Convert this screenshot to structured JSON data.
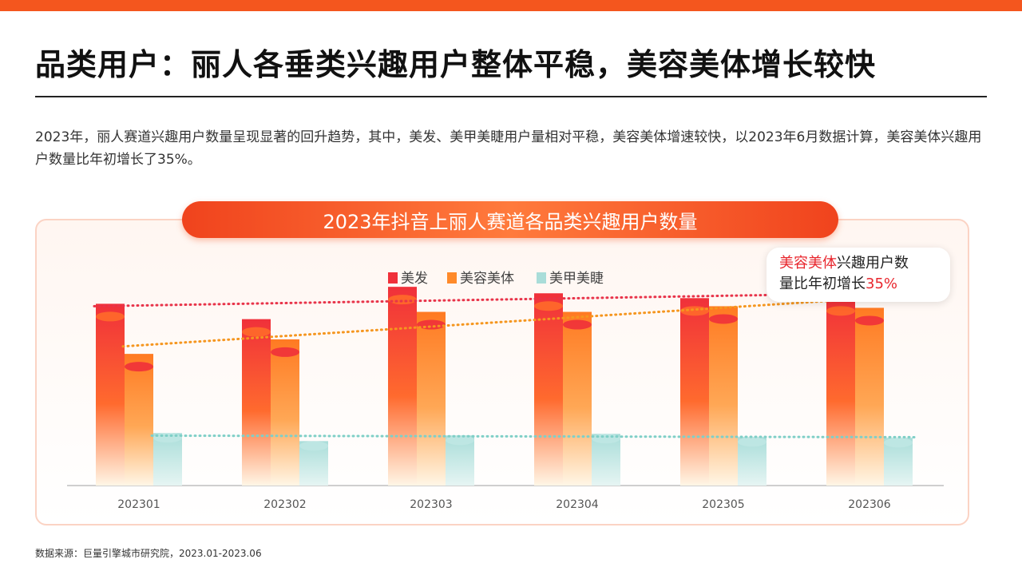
{
  "header": {
    "title": "品类用户：丽人各垂类兴趣用户整体平稳，美容美体增长较快"
  },
  "summary": "2023年，丽人赛道兴趣用户数量呈现显著的回升趋势，其中，美发、美甲美睫用户量相对平稳，美容美体增速较快，以2023年6月数据计算，美容美体兴趣用户数量比年初增长了35%。",
  "callout": {
    "highlight": "美容美体",
    "text_1": "兴趣用户数",
    "text_2": "量比年初增长",
    "percent": "35%"
  },
  "source": "数据来源：巨量引擎城市研究院，2023.01-2023.06",
  "colors": {
    "accent": "#f4561e",
    "hair": "#f0303a",
    "beauty": "#ff8a2a",
    "nail": "#a9ddd9",
    "highlight_red": "#e8262d"
  },
  "chart_data": {
    "type": "bar",
    "title": "2023年抖音上丽人赛道各品类兴趣用户数量",
    "categories": [
      "202301",
      "202302",
      "202303",
      "202304",
      "202305",
      "202306"
    ],
    "series": [
      {
        "name": "美发",
        "values": [
          225,
          206,
          246,
          238,
          232,
          232
        ],
        "color": "#f0303a"
      },
      {
        "name": "美容美体",
        "values": [
          163,
          181,
          215,
          215,
          222,
          220
        ],
        "color": "#ff8a2a"
      },
      {
        "name": "美甲美睫",
        "values": [
          65,
          55,
          62,
          64,
          60,
          59
        ],
        "color": "#a9ddd9"
      }
    ],
    "trendlines": [
      "美发",
      "美容美体",
      "美甲美睫"
    ],
    "ylim": [
      0,
      260
    ],
    "grid": false,
    "legend": "top-center",
    "xlabel": "",
    "ylabel": ""
  }
}
